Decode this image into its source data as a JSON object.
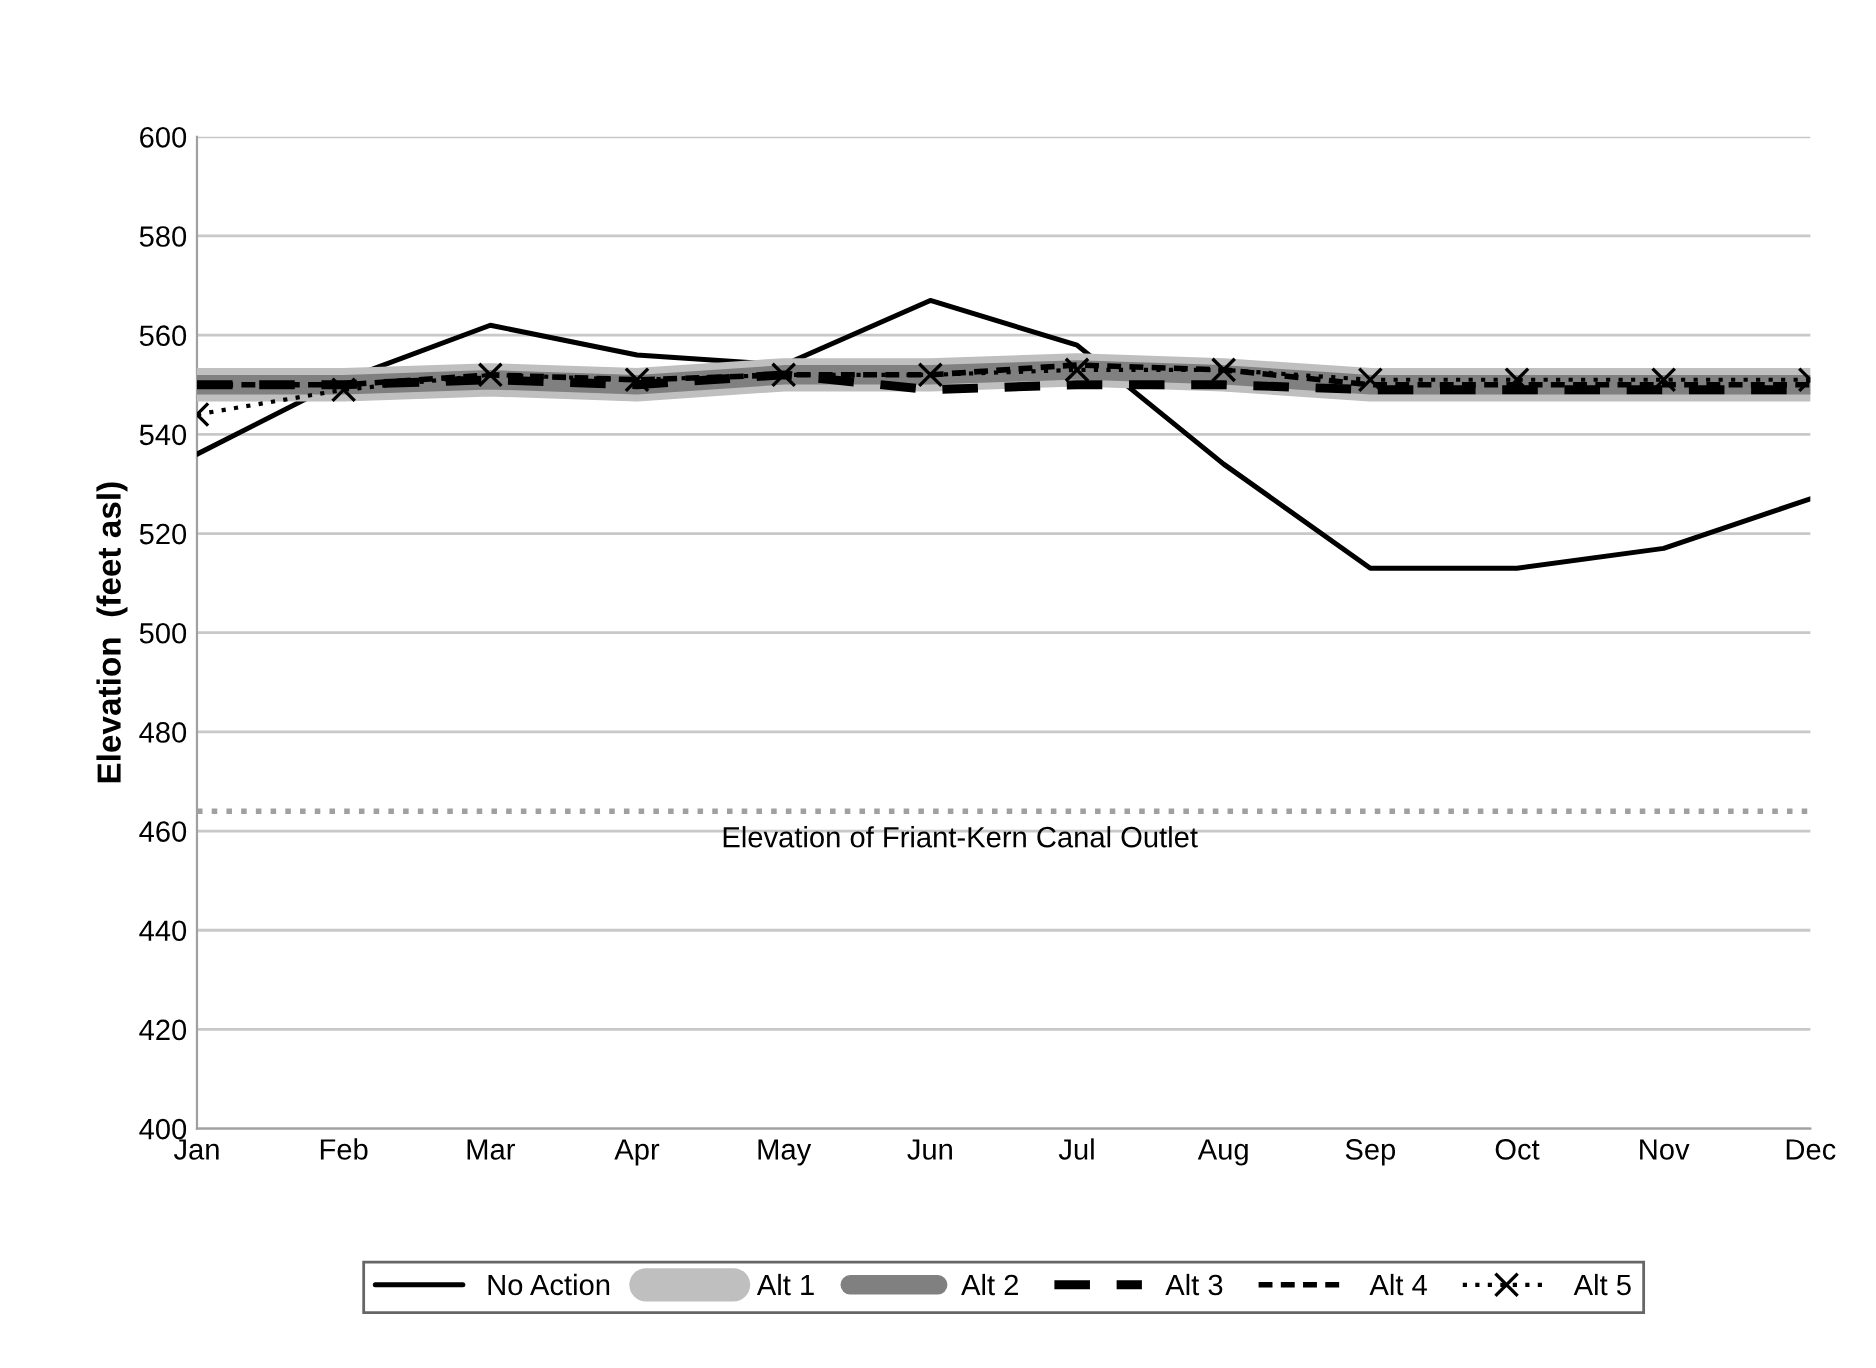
{
  "chart_data": {
    "type": "line",
    "ylabel": "Elevation  (feet asl)",
    "categories": [
      "Jan",
      "Feb",
      "Mar",
      "Apr",
      "May",
      "Jun",
      "Jul",
      "Aug",
      "Sep",
      "Oct",
      "Nov",
      "Dec"
    ],
    "series": [
      {
        "name": "No Action",
        "color": "#000000",
        "line_style": "solid",
        "marker": "none",
        "values": [
          536,
          551,
          562,
          556,
          554,
          567,
          558,
          534,
          513,
          513,
          517,
          527
        ]
      },
      {
        "name": "Alt 1",
        "color": "#bfbfbf",
        "line_style": "solid",
        "marker": "none",
        "values": [
          550,
          550,
          551,
          550,
          552,
          552,
          553,
          552,
          550,
          550,
          550,
          550
        ]
      },
      {
        "name": "Alt 2",
        "color": "#808080",
        "line_style": "solid",
        "marker": "none",
        "values": [
          550,
          550,
          551,
          550,
          552,
          552,
          553,
          552,
          550,
          550,
          550,
          550
        ]
      },
      {
        "name": "Alt 3",
        "color": "#000000",
        "line_style": "dashed",
        "marker": "none",
        "values": [
          550,
          550,
          551,
          550,
          552,
          549,
          550,
          550,
          549,
          549,
          549,
          549
        ]
      },
      {
        "name": "Alt 4",
        "color": "#000000",
        "line_style": "dashed",
        "marker": "none",
        "values": [
          550,
          550,
          552,
          551,
          552,
          552,
          554,
          553,
          550,
          550,
          550,
          550
        ]
      },
      {
        "name": "Alt 5",
        "color": "#000000",
        "line_style": "dotted",
        "marker": "cross",
        "values": [
          544,
          549,
          552,
          551,
          552,
          552,
          553,
          553,
          551,
          551,
          551,
          551
        ]
      }
    ],
    "ylim": [
      400,
      600
    ],
    "yticks": [
      400,
      420,
      440,
      460,
      480,
      500,
      520,
      540,
      560,
      580,
      600
    ],
    "ref_lines": [
      {
        "axis": "y",
        "value": 464,
        "label": "Elevation of Friant-Kern Canal Outlet",
        "color": "#a0a0a0",
        "line_style": "dotted"
      }
    ],
    "grid": "y",
    "legend": "bottom"
  }
}
